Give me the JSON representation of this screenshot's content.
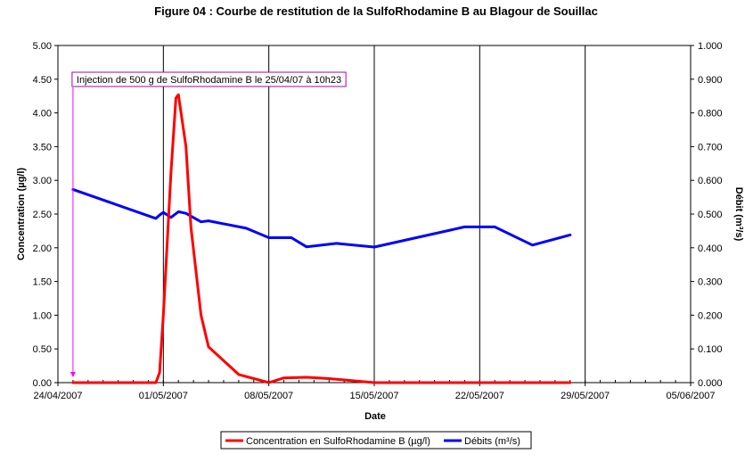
{
  "chart_data": {
    "type": "line",
    "title": "Figure 04 : Courbe de restitution de la SulfoRhodamine B au Blagour de Souillac",
    "xlabel": "Date",
    "ylabel_left": "Concentration (µg/l)",
    "ylabel_right": "Débit (m³/s)",
    "x_ticks": [
      "24/04/2007",
      "01/05/2007",
      "08/05/2007",
      "15/05/2007",
      "22/05/2007",
      "29/05/2007",
      "05/06/2007"
    ],
    "x_range": [
      "24/04/2007",
      "05/06/2007"
    ],
    "y_left_ticks": [
      "0.00",
      "0.50",
      "1.00",
      "1.50",
      "2.00",
      "2.50",
      "3.00",
      "3.50",
      "4.00",
      "4.50",
      "5.00"
    ],
    "y_left_range": [
      0,
      5
    ],
    "y_right_ticks": [
      "0.000",
      "0.100",
      "0.200",
      "0.300",
      "0.400",
      "0.500",
      "0.600",
      "0.700",
      "0.800",
      "0.900",
      "1.000"
    ],
    "y_right_range": [
      0,
      1
    ],
    "grid": "vertical",
    "legend_position": "bottom",
    "annotation": {
      "text": "Injection de 500 g de SulfoRhodamine B le 25/04/07 à 10h23",
      "date": "25/04/2007"
    },
    "series": [
      {
        "name": "Concentration en SulfoRhodamine B (µg/l)",
        "axis": "left",
        "color": "#ff0000",
        "points": [
          [
            "25/04/2007",
            0
          ],
          [
            "27/04/2007",
            0
          ],
          [
            "29/04/2007",
            0
          ],
          [
            "30/04/2007",
            0
          ],
          [
            "30/04/2007 12:00",
            0
          ],
          [
            "30/04/2007 18:00",
            0.15
          ],
          [
            "01/05/2007",
            1.0
          ],
          [
            "01/05/2007 12:00",
            3.1
          ],
          [
            "01/05/2007 20:00",
            4.22
          ],
          [
            "02/05/2007",
            4.27
          ],
          [
            "02/05/2007 12:00",
            3.5
          ],
          [
            "02/05/2007 20:00",
            2.3
          ],
          [
            "03/05/2007 12:00",
            1.0
          ],
          [
            "04/05/2007",
            0.53
          ],
          [
            "06/05/2007",
            0.12
          ],
          [
            "08/05/2007",
            0.0
          ],
          [
            "09/05/2007",
            0.07
          ],
          [
            "10/05/2007 12:00",
            0.08
          ],
          [
            "12/05/2007",
            0.06
          ],
          [
            "14/05/2007",
            0.02
          ],
          [
            "15/05/2007",
            0.0
          ],
          [
            "20/05/2007",
            0.0
          ],
          [
            "25/05/2007",
            0.0
          ],
          [
            "28/05/2007",
            0.0
          ]
        ]
      },
      {
        "name": "Débits (m³/s)",
        "axis": "right",
        "color": "#0000ff",
        "points": [
          [
            "25/04/2007",
            0.573
          ],
          [
            "30/04/2007 12:00",
            0.487
          ],
          [
            "30/04/2007 18:00",
            0.497
          ],
          [
            "01/05/2007",
            0.505
          ],
          [
            "01/05/2007 12:00",
            0.49
          ],
          [
            "02/05/2007",
            0.507
          ],
          [
            "02/05/2007 12:00",
            0.502
          ],
          [
            "03/05/2007 12:00",
            0.477
          ],
          [
            "04/05/2007",
            0.48
          ],
          [
            "06/05/2007 12:00",
            0.458
          ],
          [
            "08/05/2007",
            0.43
          ],
          [
            "09/05/2007 12:00",
            0.43
          ],
          [
            "10/05/2007 12:00",
            0.403
          ],
          [
            "12/05/2007 12:00",
            0.413
          ],
          [
            "15/05/2007",
            0.402
          ],
          [
            "21/05/2007",
            0.462
          ],
          [
            "23/05/2007",
            0.462
          ],
          [
            "25/05/2007 12:00",
            0.408
          ],
          [
            "28/05/2007",
            0.438
          ]
        ]
      }
    ]
  }
}
